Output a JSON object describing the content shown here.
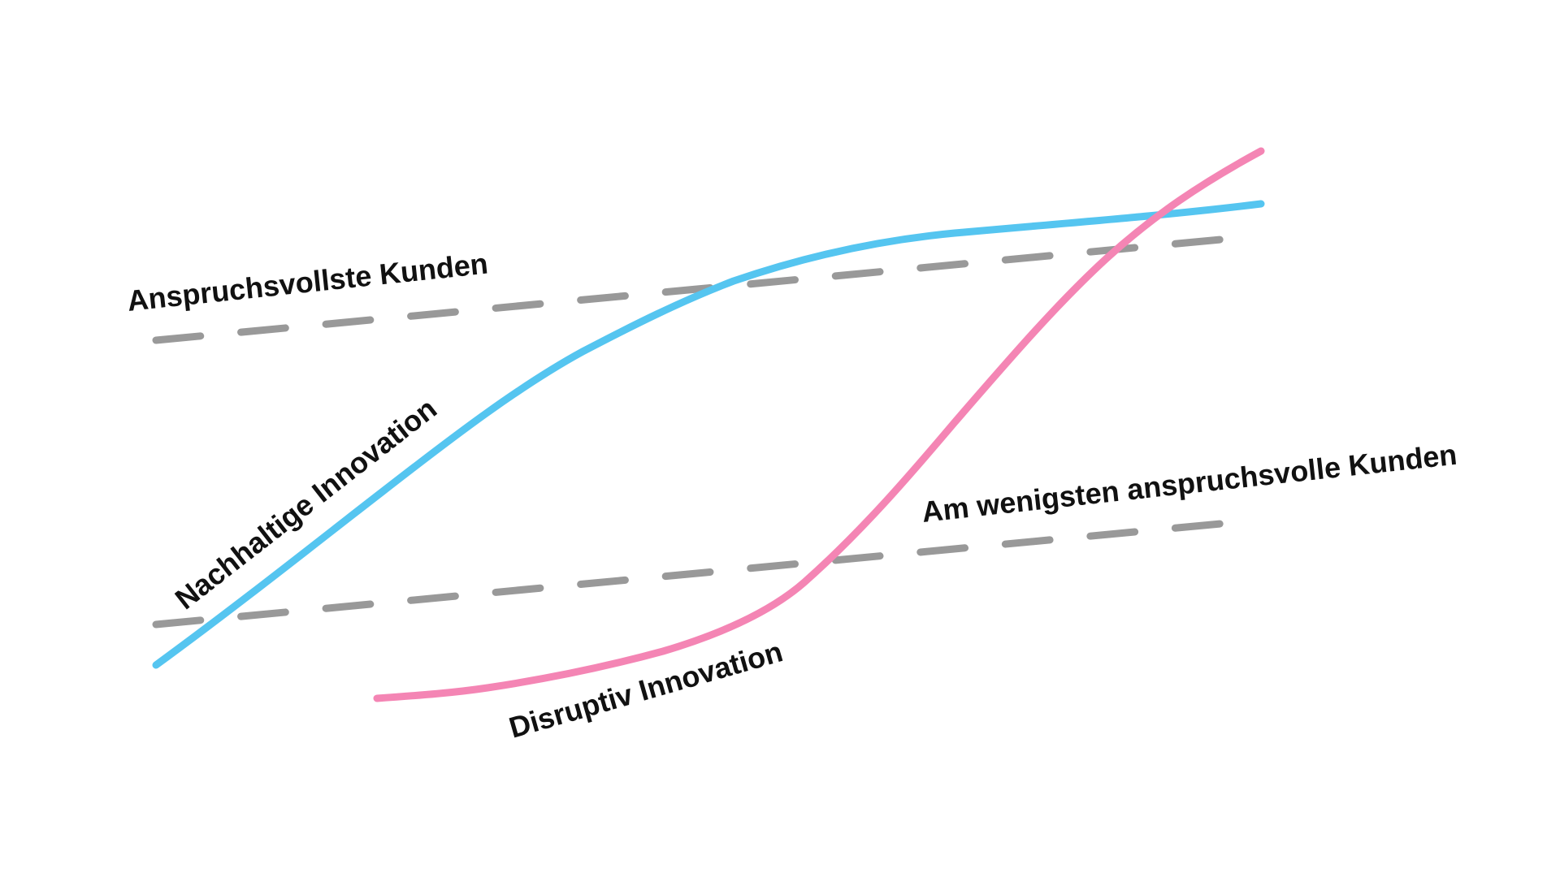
{
  "labels": {
    "most_demanding": "Anspruchsvollste Kunden",
    "least_demanding": "Am wenigsten anspruchsvolle Kunden",
    "sustaining": "Nachhaltige Innovation",
    "disruptive": "Disruptiv Innovation"
  }
}
